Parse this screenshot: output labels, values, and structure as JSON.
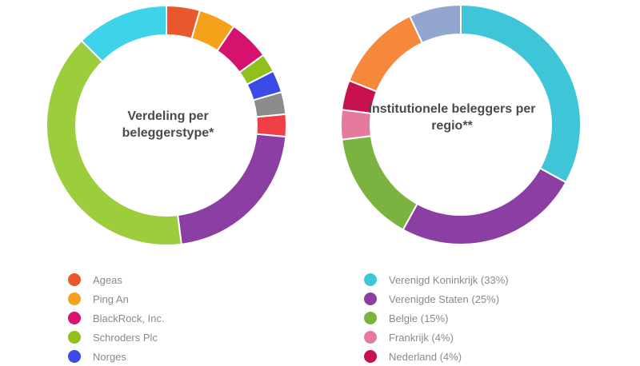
{
  "chart_data": [
    {
      "type": "pie",
      "title": "Verdeling per beleggerstype*",
      "unit": "%",
      "slices": [
        {
          "label": "Ageas",
          "value": 4.5,
          "color": "#e8582c"
        },
        {
          "label": "Ping An",
          "value": 5.0,
          "color": "#f5a11a"
        },
        {
          "label": "BlackRock, Inc.",
          "value": 5.5,
          "color": "#d5126e"
        },
        {
          "label": "Schroders Plc",
          "value": 2.5,
          "color": "#8fc01c"
        },
        {
          "label": "Norges",
          "value": 3.0,
          "color": "#3a4be8"
        },
        {
          "label": "",
          "value": 3.0,
          "color": "#8c8c8c"
        },
        {
          "label": "",
          "value": 3.0,
          "color": "#ef3e46"
        },
        {
          "label": "",
          "value": 21.5,
          "color": "#8b3fa3"
        },
        {
          "label": "",
          "value": 39.5,
          "color": "#9ccd3d"
        },
        {
          "label": "",
          "value": 12.5,
          "color": "#3fd3ea"
        }
      ],
      "legend": [
        "Ageas",
        "Ping An",
        "BlackRock, Inc.",
        "Schroders Plc",
        "Norges"
      ]
    },
    {
      "type": "pie",
      "title": "Institutionele beleggers per regio**",
      "unit": "%",
      "slices": [
        {
          "label": "Verenigd Koninkrijk (33%)",
          "value": 33,
          "color": "#3ec6d8"
        },
        {
          "label": "Verenigde Staten (25%)",
          "value": 25,
          "color": "#8b3fa3"
        },
        {
          "label": "Belgie (15%)",
          "value": 15,
          "color": "#7cb340"
        },
        {
          "label": "Frankrijk (4%)",
          "value": 4,
          "color": "#e6799e"
        },
        {
          "label": "Nederland (4%)",
          "value": 4,
          "color": "#c8124f"
        },
        {
          "label": "",
          "value": 12,
          "color": "#f5883a"
        },
        {
          "label": "",
          "value": 7,
          "color": "#92a6d0"
        }
      ],
      "legend": [
        "Verenigd Koninkrijk (33%)",
        "Verenigde Staten (25%)",
        "Belgie (15%)",
        "Frankrijk (4%)",
        "Nederland (4%)"
      ]
    }
  ]
}
